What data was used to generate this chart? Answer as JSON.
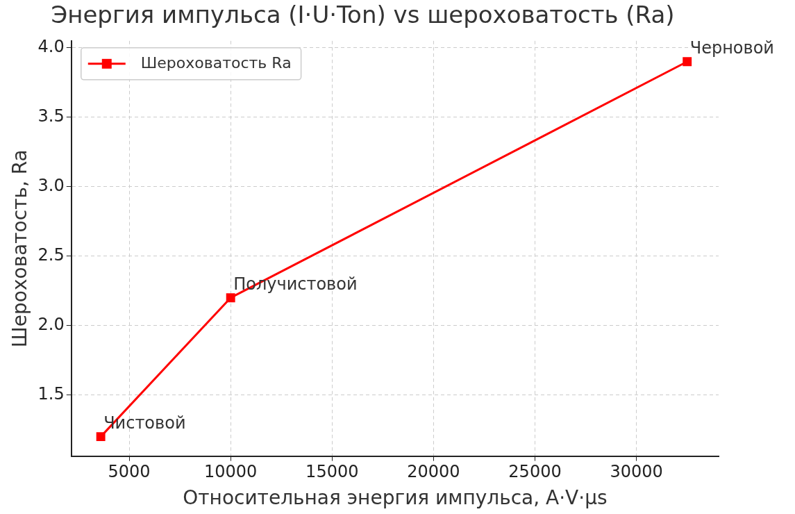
{
  "chart_data": {
    "type": "line",
    "title": "Энергия импульса (I·U·Ton) vs шероховатость (Ra)",
    "xlabel": "Относительная энергия импульса, A·V·µs",
    "ylabel": "Шероховатость, Ra",
    "x": [
      3600,
      10000,
      32500
    ],
    "series": [
      {
        "name": "Шероховатость Ra",
        "color": "#ff0000",
        "values": [
          1.2,
          2.2,
          3.9
        ]
      }
    ],
    "xlim": [
      2150,
      34050
    ],
    "xticks": [
      5000,
      10000,
      15000,
      20000,
      25000,
      30000
    ],
    "ylim": [
      1.06,
      4.05
    ],
    "yticks": [
      1.5,
      {
        "value": 2,
        "label": "2.0"
      },
      2.5,
      {
        "value": 3,
        "label": "3.0"
      },
      3.5,
      {
        "value": 4,
        "label": "4.0"
      }
    ],
    "annotations": [
      {
        "text": "Чистовой",
        "x": 3600,
        "y": 1.2
      },
      {
        "text": "Получистовой",
        "x": 10000,
        "y": 2.2
      },
      {
        "text": "Черновой",
        "x": 32500,
        "y": 3.9
      }
    ],
    "grid": true,
    "legend": "top left",
    "marker": "square",
    "line_style": "solid"
  }
}
